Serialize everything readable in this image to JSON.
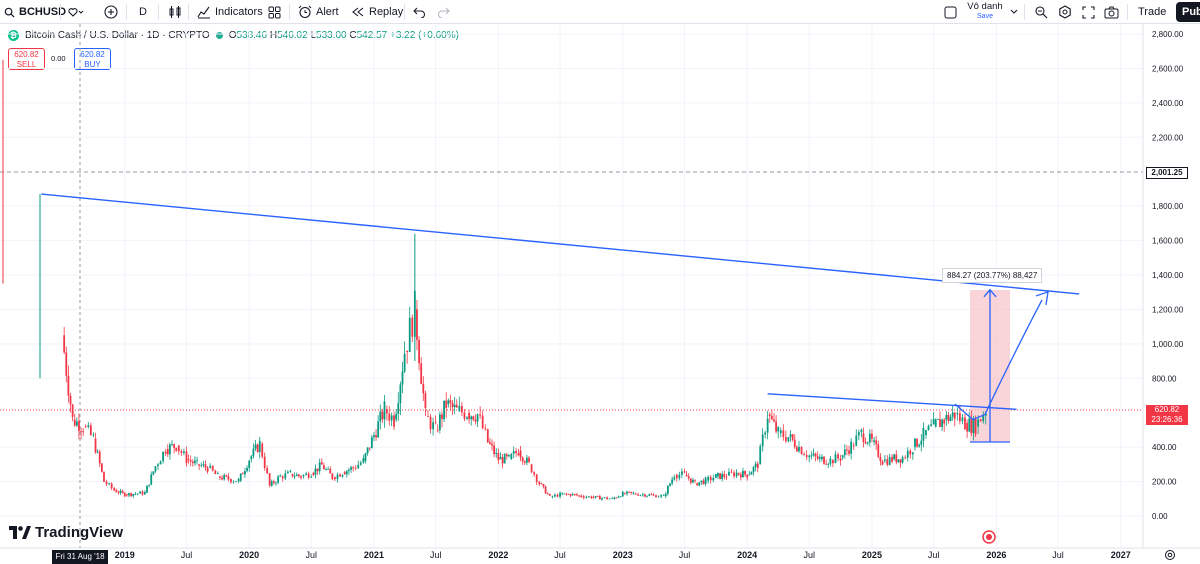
{
  "toolbar": {
    "symbol": "BCHUSD",
    "interval": "D",
    "indicators_label": "Indicators",
    "alert_label": "Alert",
    "replay_label": "Replay",
    "layout_name": "Vô danh",
    "layout_save": "Save",
    "trade_label": "Trade",
    "publish_label": "Publ"
  },
  "legend": {
    "title": "Bitcoin Cash / U.S. Dollar · 1D · CRYPTO",
    "o_label": "O",
    "o_value": "538.46",
    "h_label": "H",
    "h_value": "546.02",
    "l_label": "L",
    "l_value": "533.00",
    "c_label": "C",
    "c_value": "542.57",
    "change": "+3.22 (+0.60%)"
  },
  "order": {
    "sell_price": "620.82",
    "sell_label": "SELL",
    "spread": "0.00",
    "buy_price": "620.82",
    "buy_label": "BUY"
  },
  "price_axis": {
    "ticks": [
      "2,800.00",
      "2,600.00",
      "2,400.00",
      "2,200.00",
      "1,800.00",
      "1,600.00",
      "1,400.00",
      "1,200.00",
      "1,000.00",
      "800.00",
      "400.00",
      "200.00",
      "0.00"
    ],
    "level_label": "2,001.25",
    "current_price": "620.82",
    "countdown": "23:26:36"
  },
  "time_axis": {
    "ticks": [
      "2019",
      "Jul",
      "2020",
      "Jul",
      "2021",
      "Jul",
      "2022",
      "Jul",
      "2023",
      "Jul",
      "2024",
      "Jul",
      "2025",
      "Jul",
      "2026",
      "Jul",
      "2027"
    ],
    "crosshair_date": "Fri 31 Aug '18"
  },
  "drawings": {
    "measure_label": "884.27 (203.77%) 88,427"
  },
  "brand": {
    "logo_text": "TradingView"
  },
  "colors": {
    "up": "#089981",
    "down": "#f23645",
    "trendline": "#2962ff",
    "measure_fill": "#f8c9cf",
    "axis_text": "#131722"
  },
  "chart_data": {
    "type": "candlestick",
    "interval": "1D",
    "y_axis_range": [
      0,
      2800
    ],
    "close_series_approx": [
      {
        "x": "2018-08",
        "y": 560
      },
      {
        "x": "2018-09",
        "y": 520
      },
      {
        "x": "2018-10",
        "y": 450
      },
      {
        "x": "2018-11",
        "y": 200
      },
      {
        "x": "2018-12",
        "y": 150
      },
      {
        "x": "2019-01",
        "y": 125
      },
      {
        "x": "2019-02",
        "y": 130
      },
      {
        "x": "2019-03",
        "y": 135
      },
      {
        "x": "2019-04",
        "y": 290
      },
      {
        "x": "2019-05",
        "y": 390
      },
      {
        "x": "2019-06",
        "y": 410
      },
      {
        "x": "2019-07",
        "y": 330
      },
      {
        "x": "2019-08",
        "y": 300
      },
      {
        "x": "2019-09",
        "y": 280
      },
      {
        "x": "2019-10",
        "y": 230
      },
      {
        "x": "2019-11",
        "y": 215
      },
      {
        "x": "2019-12",
        "y": 205
      },
      {
        "x": "2020-01",
        "y": 330
      },
      {
        "x": "2020-02",
        "y": 420
      },
      {
        "x": "2020-03",
        "y": 175
      },
      {
        "x": "2020-04",
        "y": 230
      },
      {
        "x": "2020-05",
        "y": 245
      },
      {
        "x": "2020-06",
        "y": 230
      },
      {
        "x": "2020-07",
        "y": 250
      },
      {
        "x": "2020-08",
        "y": 295
      },
      {
        "x": "2020-09",
        "y": 225
      },
      {
        "x": "2020-10",
        "y": 255
      },
      {
        "x": "2020-11",
        "y": 280
      },
      {
        "x": "2020-12",
        "y": 320
      },
      {
        "x": "2021-01",
        "y": 470
      },
      {
        "x": "2021-02",
        "y": 620
      },
      {
        "x": "2021-03",
        "y": 560
      },
      {
        "x": "2021-04",
        "y": 960
      },
      {
        "x": "2021-05",
        "y": 1200
      },
      {
        "x": "2021-06",
        "y": 580
      },
      {
        "x": "2021-07",
        "y": 500
      },
      {
        "x": "2021-08",
        "y": 650
      },
      {
        "x": "2021-09",
        "y": 610
      },
      {
        "x": "2021-10",
        "y": 600
      },
      {
        "x": "2021-11",
        "y": 590
      },
      {
        "x": "2021-12",
        "y": 430
      },
      {
        "x": "2022-01",
        "y": 330
      },
      {
        "x": "2022-02",
        "y": 330
      },
      {
        "x": "2022-03",
        "y": 380
      },
      {
        "x": "2022-04",
        "y": 300
      },
      {
        "x": "2022-05",
        "y": 190
      },
      {
        "x": "2022-06",
        "y": 110
      },
      {
        "x": "2022-07",
        "y": 125
      },
      {
        "x": "2022-08",
        "y": 125
      },
      {
        "x": "2022-09",
        "y": 115
      },
      {
        "x": "2022-10",
        "y": 110
      },
      {
        "x": "2022-11",
        "y": 105
      },
      {
        "x": "2022-12",
        "y": 100
      },
      {
        "x": "2023-01",
        "y": 130
      },
      {
        "x": "2023-02",
        "y": 130
      },
      {
        "x": "2023-03",
        "y": 125
      },
      {
        "x": "2023-04",
        "y": 120
      },
      {
        "x": "2023-05",
        "y": 115
      },
      {
        "x": "2023-06",
        "y": 240
      },
      {
        "x": "2023-07",
        "y": 240
      },
      {
        "x": "2023-08",
        "y": 190
      },
      {
        "x": "2023-09",
        "y": 205
      },
      {
        "x": "2023-10",
        "y": 230
      },
      {
        "x": "2023-11",
        "y": 235
      },
      {
        "x": "2023-12",
        "y": 250
      },
      {
        "x": "2024-01",
        "y": 240
      },
      {
        "x": "2024-02",
        "y": 300
      },
      {
        "x": "2024-03",
        "y": 590
      },
      {
        "x": "2024-04",
        "y": 480
      },
      {
        "x": "2024-05",
        "y": 460
      },
      {
        "x": "2024-06",
        "y": 400
      },
      {
        "x": "2024-07",
        "y": 350
      },
      {
        "x": "2024-08",
        "y": 330
      },
      {
        "x": "2024-09",
        "y": 325
      },
      {
        "x": "2024-10",
        "y": 340
      },
      {
        "x": "2024-11",
        "y": 410
      },
      {
        "x": "2024-12",
        "y": 480
      },
      {
        "x": "2025-01",
        "y": 430
      },
      {
        "x": "2025-02",
        "y": 320
      },
      {
        "x": "2025-03",
        "y": 330
      },
      {
        "x": "2025-04",
        "y": 340
      },
      {
        "x": "2025-05",
        "y": 400
      },
      {
        "x": "2025-06",
        "y": 470
      },
      {
        "x": "2025-07",
        "y": 520
      },
      {
        "x": "2025-08",
        "y": 560
      },
      {
        "x": "2025-09",
        "y": 590
      },
      {
        "x": "2025-10",
        "y": 540
      },
      {
        "x": "2025-11",
        "y": 520
      },
      {
        "x": "2025-12",
        "y": 620.82
      }
    ],
    "all_time_high_approx": {
      "x": "2017-12",
      "y": 2700
    },
    "horizontal_level": 2001.25,
    "trendlines": [
      {
        "from": {
          "x": "2018-05",
          "y": 1870
        },
        "to": {
          "x": "2026-09",
          "y": 1290
        }
      },
      {
        "from": {
          "x": "2024-03",
          "y": 710
        },
        "to": {
          "x": "2026-03",
          "y": 620
        }
      }
    ],
    "projection_arrow": [
      {
        "x": "2025-11",
        "y": 560
      },
      {
        "x": "2026-05",
        "y": 1290
      }
    ],
    "measure_range": {
      "low": 430,
      "high": 1314
    }
  }
}
